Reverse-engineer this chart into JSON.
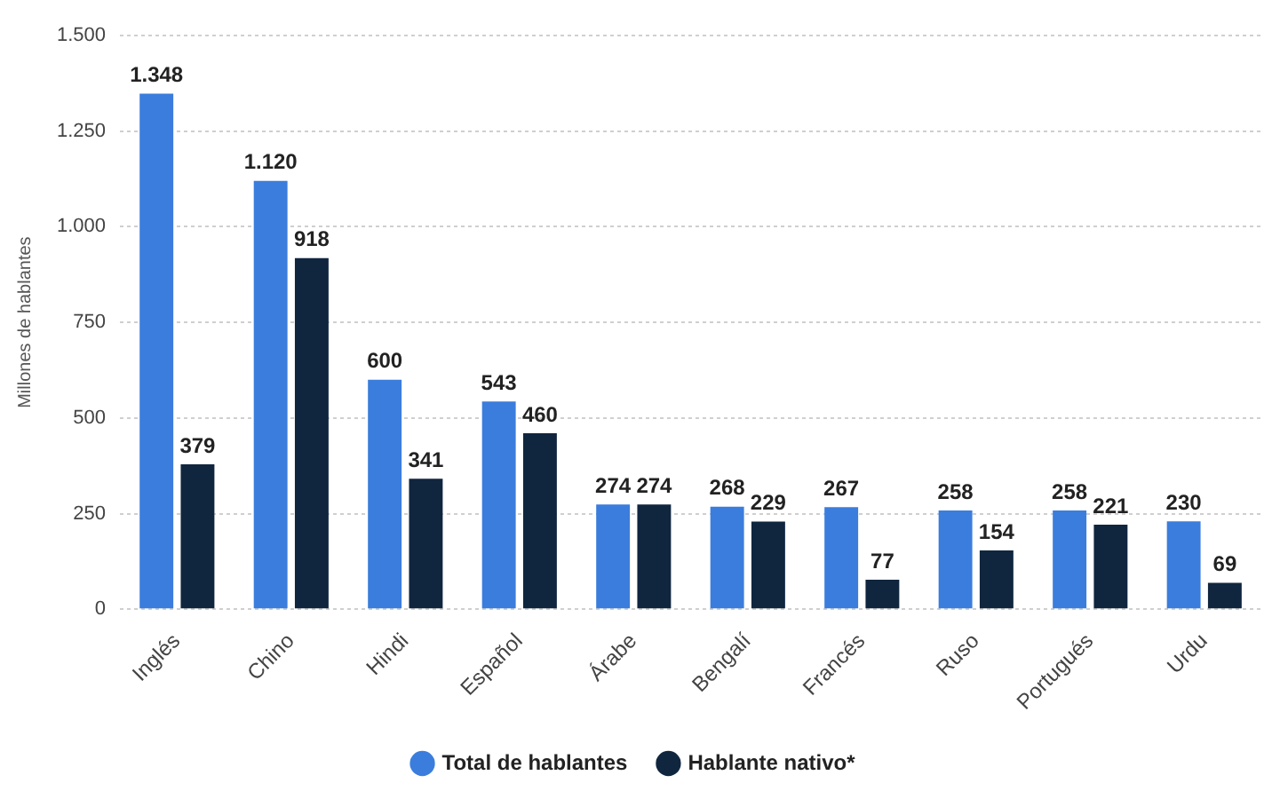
{
  "chart_data": {
    "type": "bar",
    "ylabel": "Millones de hablantes",
    "categories": [
      "Inglés",
      "Chino",
      "Hindi",
      "Español",
      "Árabe",
      "Bengalí",
      "Francés",
      "Ruso",
      "Portugués",
      "Urdu"
    ],
    "series": [
      {
        "name": "Total de hablantes",
        "color": "#3b7ddd",
        "values": [
          1348,
          1120,
          600,
          543,
          274,
          268,
          267,
          258,
          258,
          230
        ],
        "value_labels": [
          "1.348",
          "1.120",
          "600",
          "543",
          "274",
          "268",
          "267",
          "258",
          "258",
          "230"
        ]
      },
      {
        "name": "Hablante nativo*",
        "color": "#10263f",
        "values": [
          379,
          918,
          341,
          460,
          274,
          229,
          77,
          154,
          221,
          69
        ],
        "value_labels": [
          "379",
          "918",
          "341",
          "460",
          "274",
          "229",
          "77",
          "154",
          "221",
          "69"
        ]
      }
    ],
    "ylim": [
      0,
      1500
    ],
    "yticks": [
      {
        "value": 0,
        "label": "0"
      },
      {
        "value": 250,
        "label": "250"
      },
      {
        "value": 500,
        "label": "500"
      },
      {
        "value": 750,
        "label": "750"
      },
      {
        "value": 1000,
        "label": "1.000"
      },
      {
        "value": 1250,
        "label": "1.250"
      },
      {
        "value": 1500,
        "label": "1.500"
      }
    ],
    "grid": "y",
    "legend": "bottom"
  }
}
